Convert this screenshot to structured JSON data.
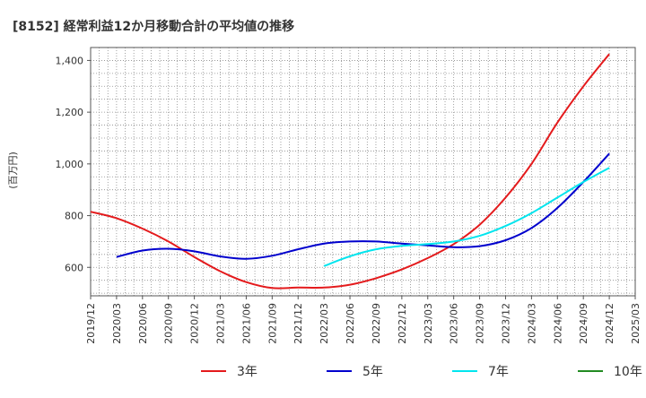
{
  "chart_data": {
    "type": "line",
    "title": "[8152]  経常利益12か月移動合計の平均値の推移",
    "ylabel": "(百万円)",
    "xlabel": "",
    "x_ticks": [
      "2019/12",
      "2020/03",
      "2020/06",
      "2020/09",
      "2020/12",
      "2021/03",
      "2021/06",
      "2021/09",
      "2021/12",
      "2022/03",
      "2022/06",
      "2022/09",
      "2022/12",
      "2023/03",
      "2023/06",
      "2023/09",
      "2023/12",
      "2024/03",
      "2024/06",
      "2024/09",
      "2024/12",
      "2025/03"
    ],
    "y_ticks": [
      600,
      800,
      1000,
      1200,
      1400
    ],
    "y_tick_labels": [
      "600",
      "800",
      "1,000",
      "1,200",
      "1,400"
    ],
    "ylim": [
      490,
      1450
    ],
    "grid": true,
    "legend_position": "bottom",
    "series": [
      {
        "name": "3年",
        "color": "#e41a1c",
        "x": [
          "2019/12",
          "2020/03",
          "2020/06",
          "2020/09",
          "2020/12",
          "2021/03",
          "2021/06",
          "2021/09",
          "2021/12",
          "2022/03",
          "2022/06",
          "2022/09",
          "2022/12",
          "2023/03",
          "2023/06",
          "2023/09",
          "2023/12",
          "2024/03",
          "2024/06",
          "2024/09",
          "2024/12"
        ],
        "values": [
          815,
          790,
          750,
          700,
          640,
          585,
          543,
          520,
          522,
          522,
          533,
          558,
          592,
          636,
          690,
          765,
          870,
          1000,
          1160,
          1300,
          1425
        ]
      },
      {
        "name": "5年",
        "color": "#0000cd",
        "x": [
          "2020/03",
          "2020/06",
          "2020/09",
          "2020/12",
          "2021/03",
          "2021/06",
          "2021/09",
          "2021/12",
          "2022/03",
          "2022/06",
          "2022/09",
          "2022/12",
          "2023/03",
          "2023/06",
          "2023/09",
          "2023/12",
          "2024/03",
          "2024/06",
          "2024/09",
          "2024/12"
        ],
        "values": [
          640,
          665,
          672,
          662,
          642,
          633,
          645,
          670,
          692,
          700,
          700,
          692,
          685,
          678,
          682,
          705,
          752,
          830,
          930,
          1040
        ]
      },
      {
        "name": "7年",
        "color": "#00e5ee",
        "x": [
          "2022/03",
          "2022/06",
          "2022/09",
          "2022/12",
          "2023/03",
          "2023/06",
          "2023/09",
          "2023/12",
          "2024/03",
          "2024/06",
          "2024/09",
          "2024/12"
        ],
        "values": [
          605,
          643,
          670,
          683,
          690,
          700,
          722,
          760,
          810,
          870,
          930,
          985
        ]
      },
      {
        "name": "10年",
        "color": "#228b22",
        "x": [],
        "values": []
      }
    ]
  }
}
